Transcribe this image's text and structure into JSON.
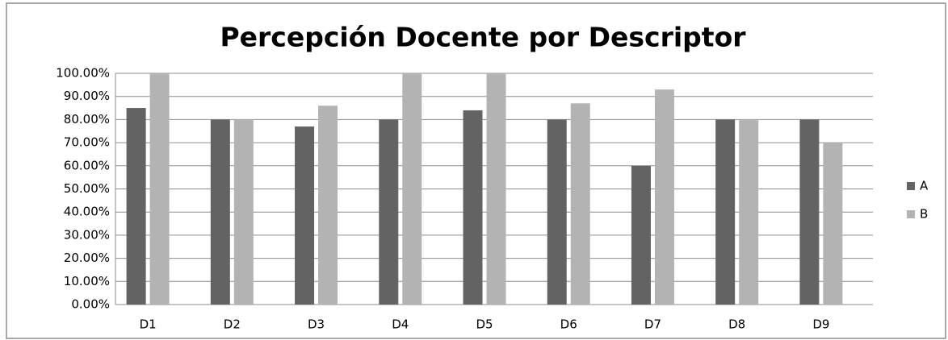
{
  "chart_data": {
    "type": "bar",
    "title": "Percepción Docente por Descriptor",
    "categories": [
      "D1",
      "D2",
      "D3",
      "D4",
      "D5",
      "D6",
      "D7",
      "D8",
      "D9"
    ],
    "series": [
      {
        "name": "A",
        "color": "#636363",
        "values": [
          85,
          80,
          77,
          80,
          84,
          80,
          60,
          80,
          80
        ]
      },
      {
        "name": "B",
        "color": "#b3b3b3",
        "values": [
          100,
          80,
          86,
          100,
          100,
          87,
          93,
          80,
          70
        ]
      }
    ],
    "ylim": [
      0,
      100
    ],
    "yticks": [
      {
        "value": 0,
        "label": "0.00%"
      },
      {
        "value": 10,
        "label": "10.00%"
      },
      {
        "value": 20,
        "label": "20.00%"
      },
      {
        "value": 30,
        "label": "30.00%"
      },
      {
        "value": 40,
        "label": "40.00%"
      },
      {
        "value": 50,
        "label": "50.00%"
      },
      {
        "value": 60,
        "label": "60.00%"
      },
      {
        "value": 70,
        "label": "70.00%"
      },
      {
        "value": 80,
        "label": "80.00%"
      },
      {
        "value": 90,
        "label": "90.00%"
      },
      {
        "value": 100,
        "label": "100.00%"
      }
    ],
    "grid": true,
    "legend": "right"
  }
}
